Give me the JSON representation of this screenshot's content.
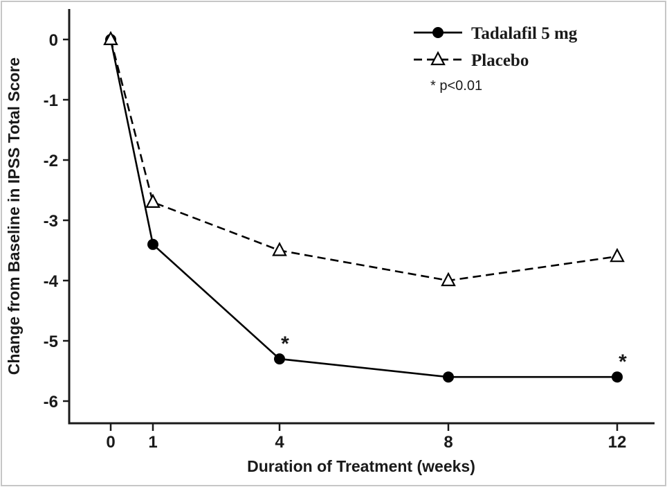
{
  "figure": {
    "background": "#ffffff",
    "border_color": "#c6c6c6",
    "line_color": "#1a1a1a"
  },
  "chart_data": {
    "type": "line",
    "title": "",
    "xlabel": "Duration of Treatment (weeks)",
    "ylabel": "Change from Baseline in IPSS Total Score",
    "x": [
      0,
      1,
      4,
      8,
      12
    ],
    "xticks": [
      0,
      1,
      4,
      8,
      12
    ],
    "yticks": [
      0,
      -1,
      -2,
      -3,
      -4,
      -5,
      -6
    ],
    "xlim": [
      -1,
      13
    ],
    "ylim": [
      -6.4,
      0.5
    ],
    "grid": false,
    "legend_position": "top-right",
    "annotation": "* p<0.01",
    "series": [
      {
        "name": "Tadalafil 5 mg",
        "values": [
          0,
          -3.4,
          -5.3,
          -5.6,
          -5.6
        ],
        "line": "solid",
        "marker": "filled-circle",
        "color": "#000000",
        "significant_x": [
          4,
          12
        ]
      },
      {
        "name": "Placebo",
        "values": [
          0,
          -2.7,
          -3.5,
          -4.0,
          -3.6
        ],
        "line": "dashed",
        "marker": "open-triangle",
        "color": "#000000",
        "significant_x": []
      }
    ]
  }
}
